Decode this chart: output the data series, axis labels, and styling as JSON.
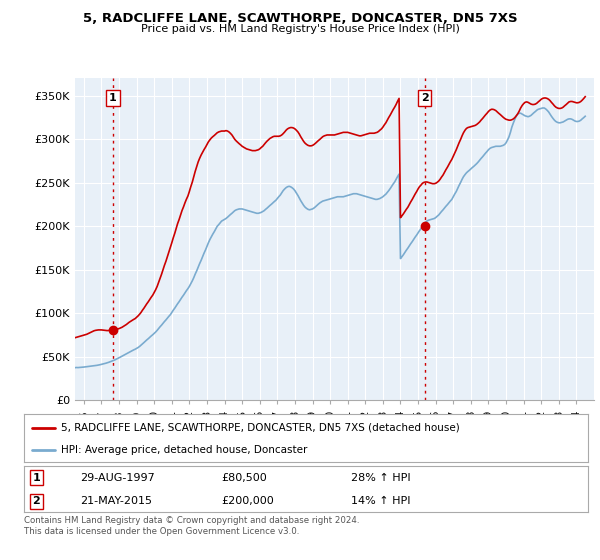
{
  "title": "5, RADCLIFFE LANE, SCAWTHORPE, DONCASTER, DN5 7XS",
  "subtitle": "Price paid vs. HM Land Registry's House Price Index (HPI)",
  "ylabel_ticks": [
    "£0",
    "£50K",
    "£100K",
    "£150K",
    "£200K",
    "£250K",
    "£300K",
    "£350K"
  ],
  "ytick_values": [
    0,
    50000,
    100000,
    150000,
    200000,
    250000,
    300000,
    350000
  ],
  "ylim": [
    0,
    370000
  ],
  "sale1": {
    "date": "29-AUG-1997",
    "price": 80500,
    "label": "1",
    "pct": "28% ↑ HPI",
    "year_x": 1997.66
  },
  "sale2": {
    "date": "21-MAY-2015",
    "price": 200000,
    "label": "2",
    "pct": "14% ↑ HPI",
    "year_x": 2015.38
  },
  "legend_line1": "5, RADCLIFFE LANE, SCAWTHORPE, DONCASTER, DN5 7XS (detached house)",
  "legend_line2": "HPI: Average price, detached house, Doncaster",
  "footnote": "Contains HM Land Registry data © Crown copyright and database right 2024.\nThis data is licensed under the Open Government Licence v3.0.",
  "line_color_red": "#cc0000",
  "line_color_blue": "#7aabcf",
  "vline_color": "#cc0000",
  "grid_color": "#cccccc",
  "chart_bg": "#e8f0f8",
  "bg_color": "#ffffff",
  "hpi_years": [
    1995.0,
    1995.08,
    1995.17,
    1995.25,
    1995.33,
    1995.42,
    1995.5,
    1995.58,
    1995.67,
    1995.75,
    1995.83,
    1995.92,
    1996.0,
    1996.08,
    1996.17,
    1996.25,
    1996.33,
    1996.42,
    1996.5,
    1996.58,
    1996.67,
    1996.75,
    1996.83,
    1996.92,
    1997.0,
    1997.08,
    1997.17,
    1997.25,
    1997.33,
    1997.42,
    1997.5,
    1997.58,
    1997.67,
    1997.75,
    1997.83,
    1997.92,
    1998.0,
    1998.08,
    1998.17,
    1998.25,
    1998.33,
    1998.42,
    1998.5,
    1998.58,
    1998.67,
    1998.75,
    1998.83,
    1998.92,
    1999.0,
    1999.08,
    1999.17,
    1999.25,
    1999.33,
    1999.42,
    1999.5,
    1999.58,
    1999.67,
    1999.75,
    1999.83,
    1999.92,
    2000.0,
    2000.08,
    2000.17,
    2000.25,
    2000.33,
    2000.42,
    2000.5,
    2000.58,
    2000.67,
    2000.75,
    2000.83,
    2000.92,
    2001.0,
    2001.08,
    2001.17,
    2001.25,
    2001.33,
    2001.42,
    2001.5,
    2001.58,
    2001.67,
    2001.75,
    2001.83,
    2001.92,
    2002.0,
    2002.08,
    2002.17,
    2002.25,
    2002.33,
    2002.42,
    2002.5,
    2002.58,
    2002.67,
    2002.75,
    2002.83,
    2002.92,
    2003.0,
    2003.08,
    2003.17,
    2003.25,
    2003.33,
    2003.42,
    2003.5,
    2003.58,
    2003.67,
    2003.75,
    2003.83,
    2003.92,
    2004.0,
    2004.08,
    2004.17,
    2004.25,
    2004.33,
    2004.42,
    2004.5,
    2004.58,
    2004.67,
    2004.75,
    2004.83,
    2004.92,
    2005.0,
    2005.08,
    2005.17,
    2005.25,
    2005.33,
    2005.42,
    2005.5,
    2005.58,
    2005.67,
    2005.75,
    2005.83,
    2005.92,
    2006.0,
    2006.08,
    2006.17,
    2006.25,
    2006.33,
    2006.42,
    2006.5,
    2006.58,
    2006.67,
    2006.75,
    2006.83,
    2006.92,
    2007.0,
    2007.08,
    2007.17,
    2007.25,
    2007.33,
    2007.42,
    2007.5,
    2007.58,
    2007.67,
    2007.75,
    2007.83,
    2007.92,
    2008.0,
    2008.08,
    2008.17,
    2008.25,
    2008.33,
    2008.42,
    2008.5,
    2008.58,
    2008.67,
    2008.75,
    2008.83,
    2008.92,
    2009.0,
    2009.08,
    2009.17,
    2009.25,
    2009.33,
    2009.42,
    2009.5,
    2009.58,
    2009.67,
    2009.75,
    2009.83,
    2009.92,
    2010.0,
    2010.08,
    2010.17,
    2010.25,
    2010.33,
    2010.42,
    2010.5,
    2010.58,
    2010.67,
    2010.75,
    2010.83,
    2010.92,
    2011.0,
    2011.08,
    2011.17,
    2011.25,
    2011.33,
    2011.42,
    2011.5,
    2011.58,
    2011.67,
    2011.75,
    2011.83,
    2011.92,
    2012.0,
    2012.08,
    2012.17,
    2012.25,
    2012.33,
    2012.42,
    2012.5,
    2012.58,
    2012.67,
    2012.75,
    2012.83,
    2012.92,
    2013.0,
    2013.08,
    2013.17,
    2013.25,
    2013.33,
    2013.42,
    2013.5,
    2013.58,
    2013.67,
    2013.75,
    2013.83,
    2013.92,
    2014.0,
    2014.08,
    2014.17,
    2014.25,
    2014.33,
    2014.42,
    2014.5,
    2014.58,
    2014.67,
    2014.75,
    2014.83,
    2014.92,
    2015.0,
    2015.08,
    2015.17,
    2015.25,
    2015.33,
    2015.42,
    2015.5,
    2015.58,
    2015.67,
    2015.75,
    2015.83,
    2015.92,
    2016.0,
    2016.08,
    2016.17,
    2016.25,
    2016.33,
    2016.42,
    2016.5,
    2016.58,
    2016.67,
    2016.75,
    2016.83,
    2016.92,
    2017.0,
    2017.08,
    2017.17,
    2017.25,
    2017.33,
    2017.42,
    2017.5,
    2017.58,
    2017.67,
    2017.75,
    2017.83,
    2017.92,
    2018.0,
    2018.08,
    2018.17,
    2018.25,
    2018.33,
    2018.42,
    2018.5,
    2018.58,
    2018.67,
    2018.75,
    2018.83,
    2018.92,
    2019.0,
    2019.08,
    2019.17,
    2019.25,
    2019.33,
    2019.42,
    2019.5,
    2019.58,
    2019.67,
    2019.75,
    2019.83,
    2019.92,
    2020.0,
    2020.08,
    2020.17,
    2020.25,
    2020.33,
    2020.42,
    2020.5,
    2020.58,
    2020.67,
    2020.75,
    2020.83,
    2020.92,
    2021.0,
    2021.08,
    2021.17,
    2021.25,
    2021.33,
    2021.42,
    2021.5,
    2021.58,
    2021.67,
    2021.75,
    2021.83,
    2021.92,
    2022.0,
    2022.08,
    2022.17,
    2022.25,
    2022.33,
    2022.42,
    2022.5,
    2022.58,
    2022.67,
    2022.75,
    2022.83,
    2022.92,
    2023.0,
    2023.08,
    2023.17,
    2023.25,
    2023.33,
    2023.42,
    2023.5,
    2023.58,
    2023.67,
    2023.75,
    2023.83,
    2023.92,
    2024.0,
    2024.08,
    2024.17,
    2024.25,
    2024.33,
    2024.42,
    2024.5
  ],
  "hpi_values": [
    37000,
    37200,
    37100,
    37300,
    37500,
    37400,
    37600,
    37800,
    37700,
    37900,
    38000,
    38100,
    38300,
    38500,
    38700,
    38900,
    39100,
    39300,
    39600,
    39800,
    40000,
    40300,
    40600,
    41000,
    41400,
    41800,
    42200,
    42700,
    43200,
    43800,
    44400,
    45000,
    45700,
    46400,
    47200,
    48000,
    48900,
    49800,
    50800,
    51700,
    52600,
    53600,
    54500,
    55400,
    56300,
    57200,
    58000,
    58800,
    59700,
    60700,
    62000,
    63400,
    64900,
    66500,
    68000,
    69500,
    71000,
    72500,
    74000,
    75500,
    77000,
    78500,
    80500,
    82500,
    84500,
    86500,
    88500,
    90500,
    92500,
    94500,
    96500,
    98500,
    101000,
    103500,
    106000,
    108500,
    111000,
    113500,
    116000,
    118500,
    121000,
    123500,
    126000,
    128500,
    131000,
    134000,
    137500,
    141000,
    145000,
    149000,
    153000,
    157000,
    161000,
    165000,
    169000,
    173000,
    177000,
    181000,
    185000,
    188000,
    191000,
    194000,
    197000,
    200000,
    202000,
    204000,
    206000,
    207000,
    208000,
    209000,
    210500,
    212000,
    213500,
    215000,
    216500,
    218000,
    219000,
    219500,
    220000,
    220000,
    220000,
    219500,
    219000,
    218500,
    218000,
    217500,
    217000,
    216500,
    216000,
    215500,
    215000,
    215000,
    215500,
    216000,
    217000,
    218000,
    219500,
    221000,
    222500,
    224000,
    225500,
    227000,
    228500,
    230000,
    232000,
    234000,
    236000,
    238500,
    241000,
    243000,
    244500,
    245500,
    246000,
    245500,
    244500,
    243000,
    241000,
    238500,
    235500,
    232500,
    229500,
    226500,
    224000,
    222000,
    220500,
    219500,
    219000,
    219500,
    220000,
    221000,
    222500,
    224000,
    225500,
    227000,
    228000,
    229000,
    229500,
    230000,
    230500,
    231000,
    231500,
    232000,
    232500,
    233000,
    233500,
    234000,
    234000,
    234000,
    234000,
    234000,
    234500,
    235000,
    235500,
    236000,
    236500,
    237000,
    237500,
    237500,
    237500,
    237000,
    236500,
    236000,
    235500,
    235000,
    234500,
    234000,
    233500,
    233000,
    232500,
    232000,
    231500,
    231000,
    231000,
    231500,
    232000,
    233000,
    234000,
    235500,
    237000,
    239000,
    241000,
    243500,
    246000,
    248500,
    251000,
    254000,
    257000,
    260000,
    163000,
    165000,
    167500,
    170000,
    172500,
    175000,
    177500,
    180000,
    182500,
    185000,
    187500,
    190000,
    192500,
    195000,
    197500,
    200000,
    202500,
    204500,
    206000,
    207000,
    207500,
    208000,
    208500,
    209000,
    210000,
    211500,
    213000,
    215000,
    217000,
    219000,
    221000,
    223000,
    225000,
    227000,
    229000,
    231000,
    234000,
    237000,
    240000,
    243500,
    247000,
    250500,
    254000,
    257000,
    259500,
    261500,
    263000,
    264500,
    266000,
    267500,
    269000,
    270500,
    272000,
    274000,
    276000,
    278000,
    280000,
    282000,
    284000,
    286000,
    288000,
    289500,
    290500,
    291000,
    291500,
    292000,
    292000,
    292000,
    292000,
    292500,
    293000,
    294000,
    296000,
    299000,
    303000,
    308000,
    314000,
    319000,
    323000,
    326500,
    329000,
    330000,
    330000,
    329000,
    328000,
    327000,
    326500,
    326000,
    326500,
    327500,
    329000,
    330500,
    332000,
    333500,
    334500,
    335000,
    335500,
    336000,
    336000,
    335000,
    333500,
    331500,
    329000,
    326500,
    324000,
    322000,
    320500,
    319500,
    319000,
    319000,
    319500,
    320000,
    321000,
    322000,
    323000,
    323500,
    323500,
    323000,
    322000,
    321000,
    320500,
    320500,
    321000,
    322000,
    323500,
    325000,
    326500,
    328000,
    329500,
    331000,
    332500,
    334000,
    335000,
    336000,
    337000
  ],
  "price_years": [
    1995.0,
    1995.08,
    1995.17,
    1995.25,
    1995.33,
    1995.42,
    1995.5,
    1995.58,
    1995.67,
    1995.75,
    1995.83,
    1995.92,
    1996.0,
    1996.08,
    1996.17,
    1996.25,
    1996.33,
    1996.42,
    1996.5,
    1996.58,
    1996.67,
    1996.75,
    1996.83,
    1996.92,
    1997.0,
    1997.08,
    1997.17,
    1997.25,
    1997.33,
    1997.42,
    1997.5,
    1997.58,
    1997.67,
    1997.75,
    1997.83,
    1997.92,
    1998.0,
    1998.08,
    1998.17,
    1998.25,
    1998.33,
    1998.42,
    1998.5,
    1998.58,
    1998.67,
    1998.75,
    1998.83,
    1998.92,
    1999.0,
    1999.08,
    1999.17,
    1999.25,
    1999.33,
    1999.42,
    1999.5,
    1999.58,
    1999.67,
    1999.75,
    1999.83,
    1999.92,
    2000.0,
    2000.08,
    2000.17,
    2000.25,
    2000.33,
    2000.42,
    2000.5,
    2000.58,
    2000.67,
    2000.75,
    2000.83,
    2000.92,
    2001.0,
    2001.08,
    2001.17,
    2001.25,
    2001.33,
    2001.42,
    2001.5,
    2001.58,
    2001.67,
    2001.75,
    2001.83,
    2001.92,
    2002.0,
    2002.08,
    2002.17,
    2002.25,
    2002.33,
    2002.42,
    2002.5,
    2002.58,
    2002.67,
    2002.75,
    2002.83,
    2002.92,
    2003.0,
    2003.08,
    2003.17,
    2003.25,
    2003.33,
    2003.42,
    2003.5,
    2003.58,
    2003.67,
    2003.75,
    2003.83,
    2003.92,
    2004.0,
    2004.08,
    2004.17,
    2004.25,
    2004.33,
    2004.42,
    2004.5,
    2004.58,
    2004.67,
    2004.75,
    2004.83,
    2004.92,
    2005.0,
    2005.08,
    2005.17,
    2005.25,
    2005.33,
    2005.42,
    2005.5,
    2005.58,
    2005.67,
    2005.75,
    2005.83,
    2005.92,
    2006.0,
    2006.08,
    2006.17,
    2006.25,
    2006.33,
    2006.42,
    2006.5,
    2006.58,
    2006.67,
    2006.75,
    2006.83,
    2006.92,
    2007.0,
    2007.08,
    2007.17,
    2007.25,
    2007.33,
    2007.42,
    2007.5,
    2007.58,
    2007.67,
    2007.75,
    2007.83,
    2007.92,
    2008.0,
    2008.08,
    2008.17,
    2008.25,
    2008.33,
    2008.42,
    2008.5,
    2008.58,
    2008.67,
    2008.75,
    2008.83,
    2008.92,
    2009.0,
    2009.08,
    2009.17,
    2009.25,
    2009.33,
    2009.42,
    2009.5,
    2009.58,
    2009.67,
    2009.75,
    2009.83,
    2009.92,
    2010.0,
    2010.08,
    2010.17,
    2010.25,
    2010.33,
    2010.42,
    2010.5,
    2010.58,
    2010.67,
    2010.75,
    2010.83,
    2010.92,
    2011.0,
    2011.08,
    2011.17,
    2011.25,
    2011.33,
    2011.42,
    2011.5,
    2011.58,
    2011.67,
    2011.75,
    2011.83,
    2011.92,
    2012.0,
    2012.08,
    2012.17,
    2012.25,
    2012.33,
    2012.42,
    2012.5,
    2012.58,
    2012.67,
    2012.75,
    2012.83,
    2012.92,
    2013.0,
    2013.08,
    2013.17,
    2013.25,
    2013.33,
    2013.42,
    2013.5,
    2013.58,
    2013.67,
    2013.75,
    2013.83,
    2013.92,
    2014.0,
    2014.08,
    2014.17,
    2014.25,
    2014.33,
    2014.42,
    2014.5,
    2014.58,
    2014.67,
    2014.75,
    2014.83,
    2014.92,
    2015.0,
    2015.08,
    2015.17,
    2015.25,
    2015.33,
    2015.42,
    2015.5,
    2015.58,
    2015.67,
    2015.75,
    2015.83,
    2015.92,
    2016.0,
    2016.08,
    2016.17,
    2016.25,
    2016.33,
    2016.42,
    2016.5,
    2016.58,
    2016.67,
    2016.75,
    2016.83,
    2016.92,
    2017.0,
    2017.08,
    2017.17,
    2017.25,
    2017.33,
    2017.42,
    2017.5,
    2017.58,
    2017.67,
    2017.75,
    2017.83,
    2017.92,
    2018.0,
    2018.08,
    2018.17,
    2018.25,
    2018.33,
    2018.42,
    2018.5,
    2018.58,
    2018.67,
    2018.75,
    2018.83,
    2018.92,
    2019.0,
    2019.08,
    2019.17,
    2019.25,
    2019.33,
    2019.42,
    2019.5,
    2019.58,
    2019.67,
    2019.75,
    2019.83,
    2019.92,
    2020.0,
    2020.08,
    2020.17,
    2020.25,
    2020.33,
    2020.42,
    2020.5,
    2020.58,
    2020.67,
    2020.75,
    2020.83,
    2020.92,
    2021.0,
    2021.08,
    2021.17,
    2021.25,
    2021.33,
    2021.42,
    2021.5,
    2021.58,
    2021.67,
    2021.75,
    2021.83,
    2021.92,
    2022.0,
    2022.08,
    2022.17,
    2022.25,
    2022.33,
    2022.42,
    2022.5,
    2022.58,
    2022.67,
    2022.75,
    2022.83,
    2022.92,
    2023.0,
    2023.08,
    2023.17,
    2023.25,
    2023.33,
    2023.42,
    2023.5,
    2023.58,
    2023.67,
    2023.75,
    2023.83,
    2023.92,
    2024.0,
    2024.08,
    2024.17,
    2024.25,
    2024.33,
    2024.42,
    2024.5
  ],
  "price_values": [
    69000,
    69500,
    70000,
    70500,
    71000,
    71500,
    72000,
    72500,
    73000,
    73500,
    74000,
    74500,
    75000,
    75500,
    76000,
    76800,
    77600,
    78400,
    79200,
    80000,
    80500,
    80800,
    81000,
    81000,
    81000,
    80800,
    80500,
    80300,
    80200,
    80300,
    80500,
    80800,
    81000,
    81200,
    81500,
    82000,
    82500,
    83200,
    84000,
    85000,
    86000,
    87200,
    88500,
    89800,
    91000,
    92000,
    93000,
    94000,
    95500,
    97000,
    99000,
    101000,
    103500,
    106000,
    108500,
    111000,
    113500,
    116000,
    118500,
    121000,
    124000,
    127000,
    131000,
    135500,
    140000,
    145000,
    150000,
    155000,
    160000,
    165000,
    170000,
    175500,
    181000,
    186500,
    192000,
    197500,
    203000,
    208000,
    213000,
    218000,
    222500,
    227000,
    231000,
    235000,
    240000,
    245500,
    251000,
    257000,
    263000,
    269000,
    274000,
    278000,
    282000,
    285000,
    288000,
    291000,
    294000,
    297000,
    299500,
    301500,
    303000,
    304500,
    306000,
    307500,
    308500,
    309000,
    309500,
    309500,
    309500,
    310000,
    309500,
    308500,
    307000,
    305000,
    302500,
    300000,
    298000,
    296500,
    295000,
    293500,
    292000,
    291000,
    290000,
    289000,
    288500,
    288000,
    287500,
    287000,
    287000,
    287000,
    287500,
    288000,
    289000,
    290500,
    292000,
    294000,
    296000,
    298000,
    299500,
    301000,
    302000,
    303000,
    303500,
    303500,
    303500,
    303500,
    304000,
    305000,
    306500,
    308500,
    310500,
    312000,
    313000,
    313500,
    313500,
    313000,
    312000,
    310500,
    308500,
    306000,
    303000,
    300000,
    297500,
    295500,
    294000,
    293000,
    292500,
    292500,
    293000,
    294000,
    295500,
    297000,
    298500,
    300000,
    301500,
    303000,
    304000,
    304500,
    305000,
    305000,
    305000,
    305000,
    305000,
    305000,
    305500,
    306000,
    306500,
    307000,
    307500,
    308000,
    308000,
    308000,
    308000,
    307500,
    307000,
    306500,
    306000,
    305500,
    305000,
    304500,
    304000,
    304000,
    304500,
    305000,
    305500,
    306000,
    306500,
    307000,
    307000,
    307000,
    307000,
    307500,
    308000,
    309000,
    310500,
    312000,
    314000,
    316500,
    319000,
    322000,
    325000,
    328000,
    331000,
    334000,
    337000,
    340000,
    343500,
    347000,
    210000,
    212000,
    214500,
    217000,
    219500,
    222000,
    225000,
    228000,
    231000,
    234000,
    237000,
    240000,
    243000,
    245500,
    247500,
    249500,
    250500,
    251000,
    251000,
    250500,
    250000,
    249500,
    249000,
    249000,
    249500,
    250500,
    252000,
    254000,
    256500,
    259000,
    262000,
    265000,
    268000,
    271000,
    274000,
    277000,
    280500,
    284000,
    288000,
    292000,
    296000,
    300000,
    304000,
    307500,
    310500,
    312500,
    313500,
    314000,
    314500,
    315000,
    315500,
    316000,
    317000,
    318500,
    320000,
    322000,
    324000,
    326000,
    328000,
    330000,
    332000,
    333500,
    334500,
    334500,
    334000,
    333000,
    331500,
    330000,
    328500,
    327000,
    325500,
    324000,
    323000,
    322500,
    322000,
    322000,
    322500,
    323500,
    325000,
    327000,
    329500,
    332500,
    336000,
    339000,
    341000,
    342500,
    343000,
    342500,
    341500,
    340500,
    340000,
    340000,
    340500,
    341500,
    343000,
    344500,
    346000,
    347000,
    347500,
    347500,
    347000,
    346000,
    344500,
    342500,
    340500,
    338500,
    337000,
    336000,
    335500,
    335500,
    336000,
    337000,
    338500,
    340000,
    341500,
    343000,
    343500,
    343500,
    343000,
    342500,
    342000,
    342000,
    342500,
    343500,
    345000,
    347000,
    349000,
    351000,
    352500,
    353500,
    354000,
    354500,
    355000,
    355000,
    355000
  ],
  "xlim": [
    1995.5,
    2025.0
  ],
  "xtick_years": [
    1996,
    1997,
    1998,
    1999,
    2000,
    2001,
    2002,
    2003,
    2004,
    2005,
    2006,
    2007,
    2008,
    2009,
    2010,
    2011,
    2012,
    2013,
    2014,
    2015,
    2016,
    2017,
    2018,
    2019,
    2020,
    2021,
    2022,
    2023,
    2024
  ]
}
